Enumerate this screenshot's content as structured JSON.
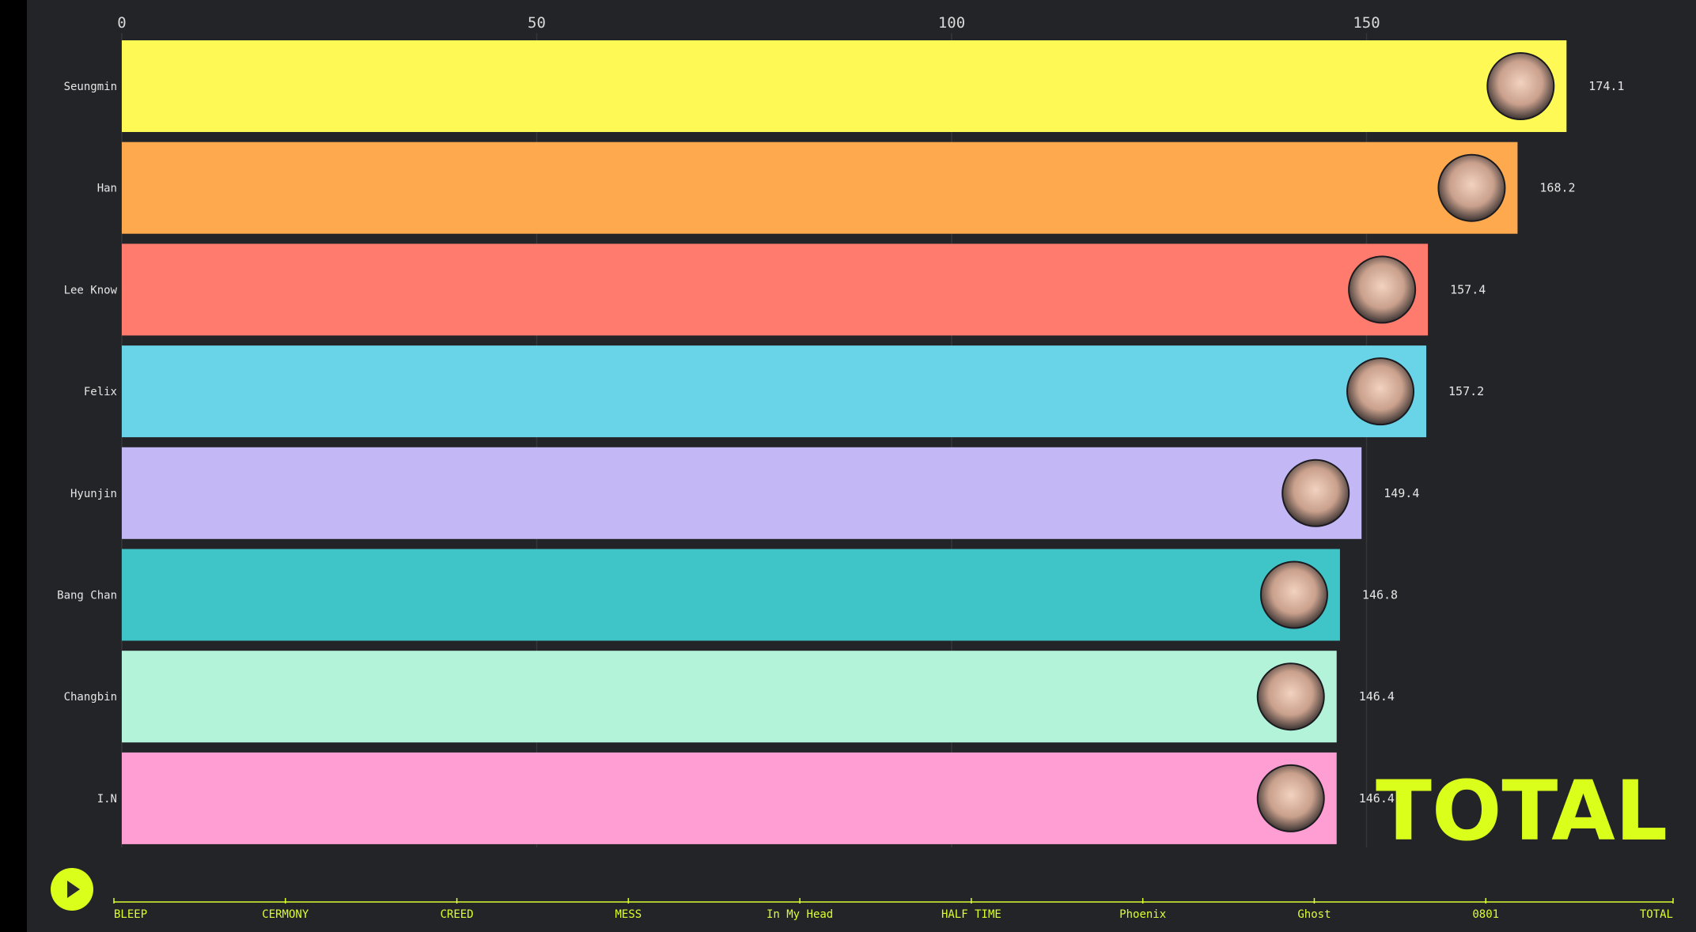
{
  "chart_data": {
    "type": "bar",
    "orientation": "horizontal",
    "xlim": [
      0,
      182
    ],
    "x_ticks": [
      "0",
      "50",
      "100",
      "150"
    ],
    "x_tick_values": [
      0,
      50,
      100,
      150
    ],
    "categories": [
      "Seungmin",
      "Han",
      "Lee Know",
      "Felix",
      "Hyunjin",
      "Bang Chan",
      "Changbin",
      "I.N"
    ],
    "values": [
      174.1,
      168.2,
      157.4,
      157.2,
      149.4,
      146.8,
      146.4,
      146.4
    ],
    "value_labels": [
      "174.1",
      "168.2",
      "157.4",
      "157.2",
      "149.4",
      "146.8",
      "146.4",
      "146.4"
    ],
    "colors": [
      "#fff955",
      "#ffa94f",
      "#ff7b6e",
      "#69d3e8",
      "#c4b7f5",
      "#3fc4c8",
      "#b2f3d9",
      "#ff9ed2"
    ],
    "current_frame": "TOTAL",
    "grid": true,
    "timeline": [
      "BLEEP",
      "CERMONY",
      "CREED",
      "MESS",
      "In My Head",
      "HALF TIME",
      "Phoenix",
      "Ghost",
      "0801",
      "TOTAL"
    ],
    "timeline_position": 1.0,
    "accent_color": "#d9ff1a"
  }
}
